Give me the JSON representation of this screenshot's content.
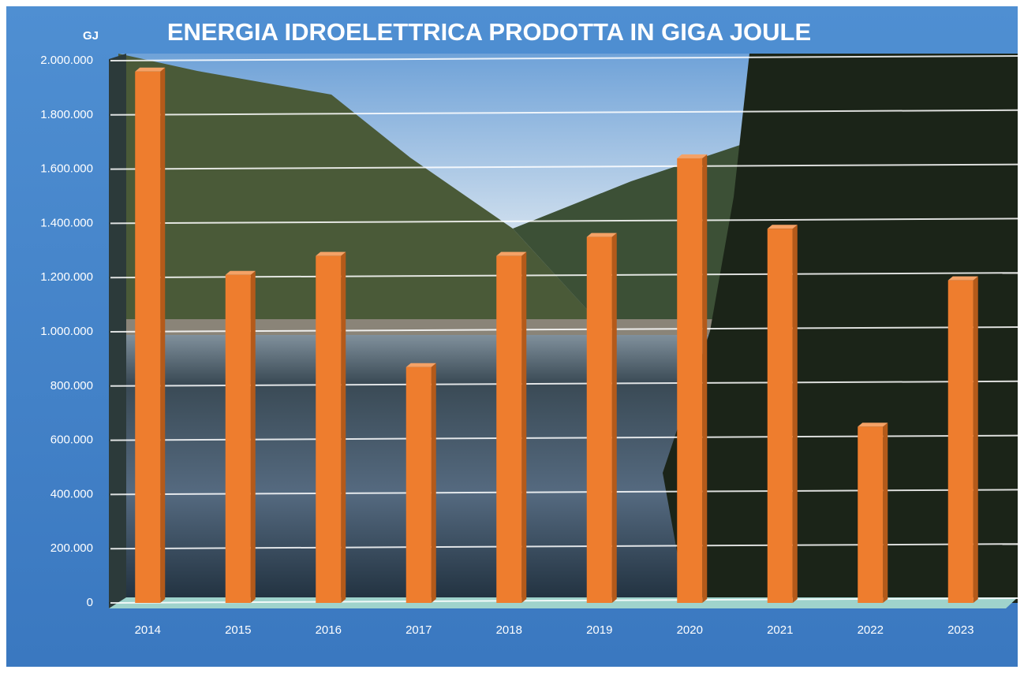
{
  "chart_data": {
    "type": "bar",
    "title": "ENERGIA IDROELETTRICA PRODOTTA IN GIGA JOULE",
    "y_axis_label": "GJ",
    "categories": [
      "2014",
      "2015",
      "2016",
      "2017",
      "2018",
      "2019",
      "2020",
      "2021",
      "2022",
      "2023"
    ],
    "values": [
      1960000,
      1210000,
      1280000,
      870000,
      1280000,
      1350000,
      1640000,
      1380000,
      650000,
      1190000
    ],
    "color": "#ee7d2e",
    "ylim": [
      0,
      2000000
    ],
    "yticks": [
      0,
      {
        "value": 200000,
        "label": "200.000"
      },
      {
        "value": 400000,
        "label": "400.000"
      },
      {
        "value": 600000,
        "label": "600.000"
      },
      {
        "value": 800000,
        "label": "800.000"
      },
      {
        "value": 1000000,
        "label": "1.000.000"
      },
      {
        "value": 1200000,
        "label": "1.200.000"
      },
      {
        "value": 1400000,
        "label": "1.400.000"
      },
      {
        "value": 1600000,
        "label": "1.600.000"
      },
      {
        "value": 1800000,
        "label": "1.800.000"
      },
      {
        "value": 2000000,
        "label": "2.000.000"
      }
    ],
    "grid": true
  }
}
